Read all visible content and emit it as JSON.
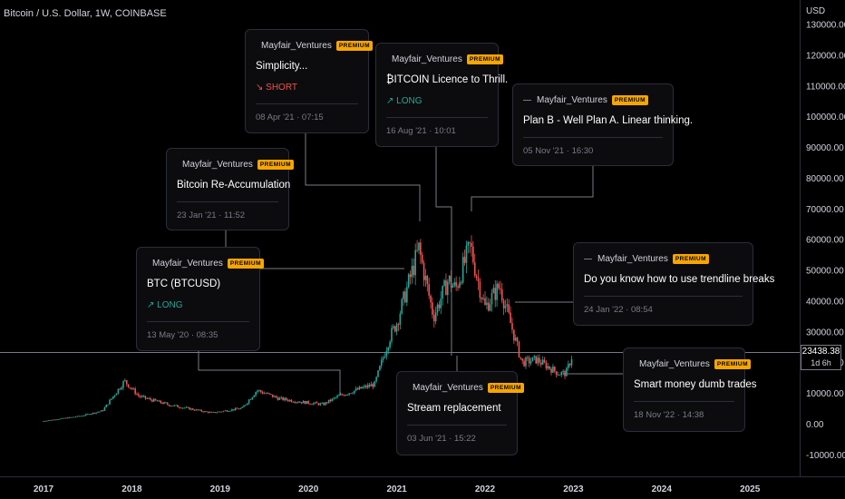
{
  "symbol_title": "Bitcoin / U.S. Dollar, 1W, COINBASE",
  "currency_label": "USD",
  "last_price": "23438.38",
  "countdown": "1d 6h",
  "colors": {
    "up": "#26a69a",
    "down": "#ef5350",
    "badge": "#f7a600",
    "connector": "#787b86"
  },
  "chart_data": {
    "type": "candlestick",
    "title": "Bitcoin / U.S. Dollar, 1W, COINBASE",
    "ylabel": "USD",
    "ylim": [
      -17000,
      138000
    ],
    "x_ticks": [
      "2017",
      "2018",
      "2019",
      "2020",
      "2021",
      "2022",
      "2023",
      "2024",
      "2025"
    ],
    "y_ticks": [
      "130000.00",
      "120000.00",
      "110000.00",
      "100000.00",
      "90000.00",
      "80000.00",
      "70000.00",
      "60000.00",
      "50000.00",
      "40000.00",
      "30000.00",
      "20000.00",
      "10000.00",
      "0.00",
      "-10000.00"
    ],
    "y_tick_values": [
      130000,
      120000,
      110000,
      100000,
      90000,
      80000,
      70000,
      60000,
      50000,
      40000,
      30000,
      20000,
      10000,
      0,
      -10000
    ],
    "series": [
      {
        "dates": [
          "2017-01",
          "2017-06",
          "2017-09",
          "2017-12",
          "2018-02",
          "2018-06",
          "2018-11",
          "2018-12",
          "2019-04",
          "2019-06",
          "2019-09",
          "2019-12",
          "2020-03",
          "2020-05",
          "2020-08",
          "2020-10",
          "2020-12",
          "2021-01",
          "2021-04",
          "2021-06",
          "2021-08",
          "2021-09",
          "2021-11",
          "2021-12",
          "2022-01",
          "2022-03",
          "2022-06",
          "2022-08",
          "2022-11",
          "2022-12",
          "2023-01"
        ],
        "close": [
          1000,
          2600,
          4300,
          14000,
          9000,
          6300,
          4000,
          3700,
          5200,
          11000,
          8300,
          7200,
          6400,
          9000,
          11500,
          13000,
          28000,
          33000,
          57000,
          35000,
          47000,
          44000,
          58000,
          47000,
          38000,
          45000,
          20000,
          21000,
          16500,
          16500,
          23400
        ]
      }
    ],
    "annotations": [
      {
        "author": "Mayfair_Ventures",
        "badge": "PREMIUM",
        "title": "BTC (BTCUSD)",
        "direction": "LONG",
        "date": "13 May '20 · 08:35"
      },
      {
        "author": "Mayfair_Ventures",
        "badge": "PREMIUM",
        "title": "Bitcoin Re-Accumulation",
        "direction": "",
        "date": "23 Jan '21 · 11:52"
      },
      {
        "author": "Mayfair_Ventures",
        "badge": "PREMIUM",
        "title": "Simplicity...",
        "direction": "SHORT",
        "date": "08 Apr '21 · 07:15"
      },
      {
        "author": "Mayfair_Ventures",
        "badge": "PREMIUM",
        "title": "₿ITCOIN Licence to Thrill.",
        "direction": "LONG",
        "date": "16 Aug '21 · 10:01"
      },
      {
        "author": "Mayfair_Ventures",
        "badge": "PREMIUM",
        "title": "Plan B - Well Plan A. Linear thinking.",
        "direction": "",
        "date": "05 Nov '21 · 16:30"
      },
      {
        "author": "Mayfair_Ventures",
        "badge": "PREMIUM",
        "title": "Stream replacement",
        "direction": "",
        "date": "03 Jun '21 · 15:22"
      },
      {
        "author": "Mayfair_Ventures",
        "badge": "PREMIUM",
        "title": "Do you know how to use trendline breaks",
        "direction": "",
        "date": "24 Jan '22 · 08:54"
      },
      {
        "author": "Mayfair_Ventures",
        "badge": "PREMIUM",
        "title": "Smart money dumb trades",
        "direction": "",
        "date": "18 Nov '22 · 14:38"
      }
    ],
    "direction_labels": {
      "LONG": "↗ LONG",
      "SHORT": "↘ SHORT"
    }
  }
}
